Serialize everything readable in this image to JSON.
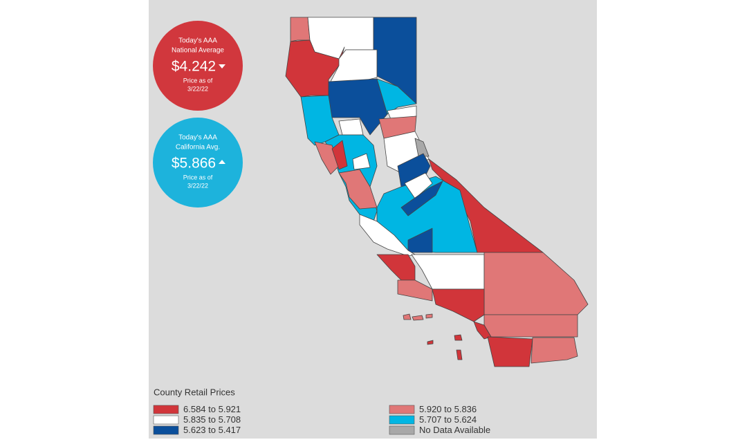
{
  "national": {
    "label_line1": "Today's AAA",
    "label_line2": "National Average",
    "price": "$4.242",
    "asof_line1": "Price as of",
    "asof_line2": "3/22/22",
    "color": "#d1373d"
  },
  "california": {
    "label_line1": "Today's AAA",
    "label_line2": "California Avg.",
    "price": "$5.866",
    "asof_line1": "Price as of",
    "asof_line2": "3/22/22",
    "color": "#1db3dc"
  },
  "legend": {
    "title": "County Retail Prices",
    "items": [
      {
        "label": "6.584 to 5.921",
        "color": "#d1353a"
      },
      {
        "label": "5.835 to 5.708",
        "color": "#ffffff"
      },
      {
        "label": "5.623 to 5.417",
        "color": "#0b4f9b"
      },
      {
        "label": "5.920 to 5.836",
        "color": "#e07777"
      },
      {
        "label": "5.707 to 5.624",
        "color": "#00b6e3"
      },
      {
        "label": "No Data Available",
        "color": "#a8a8a8"
      }
    ]
  }
}
